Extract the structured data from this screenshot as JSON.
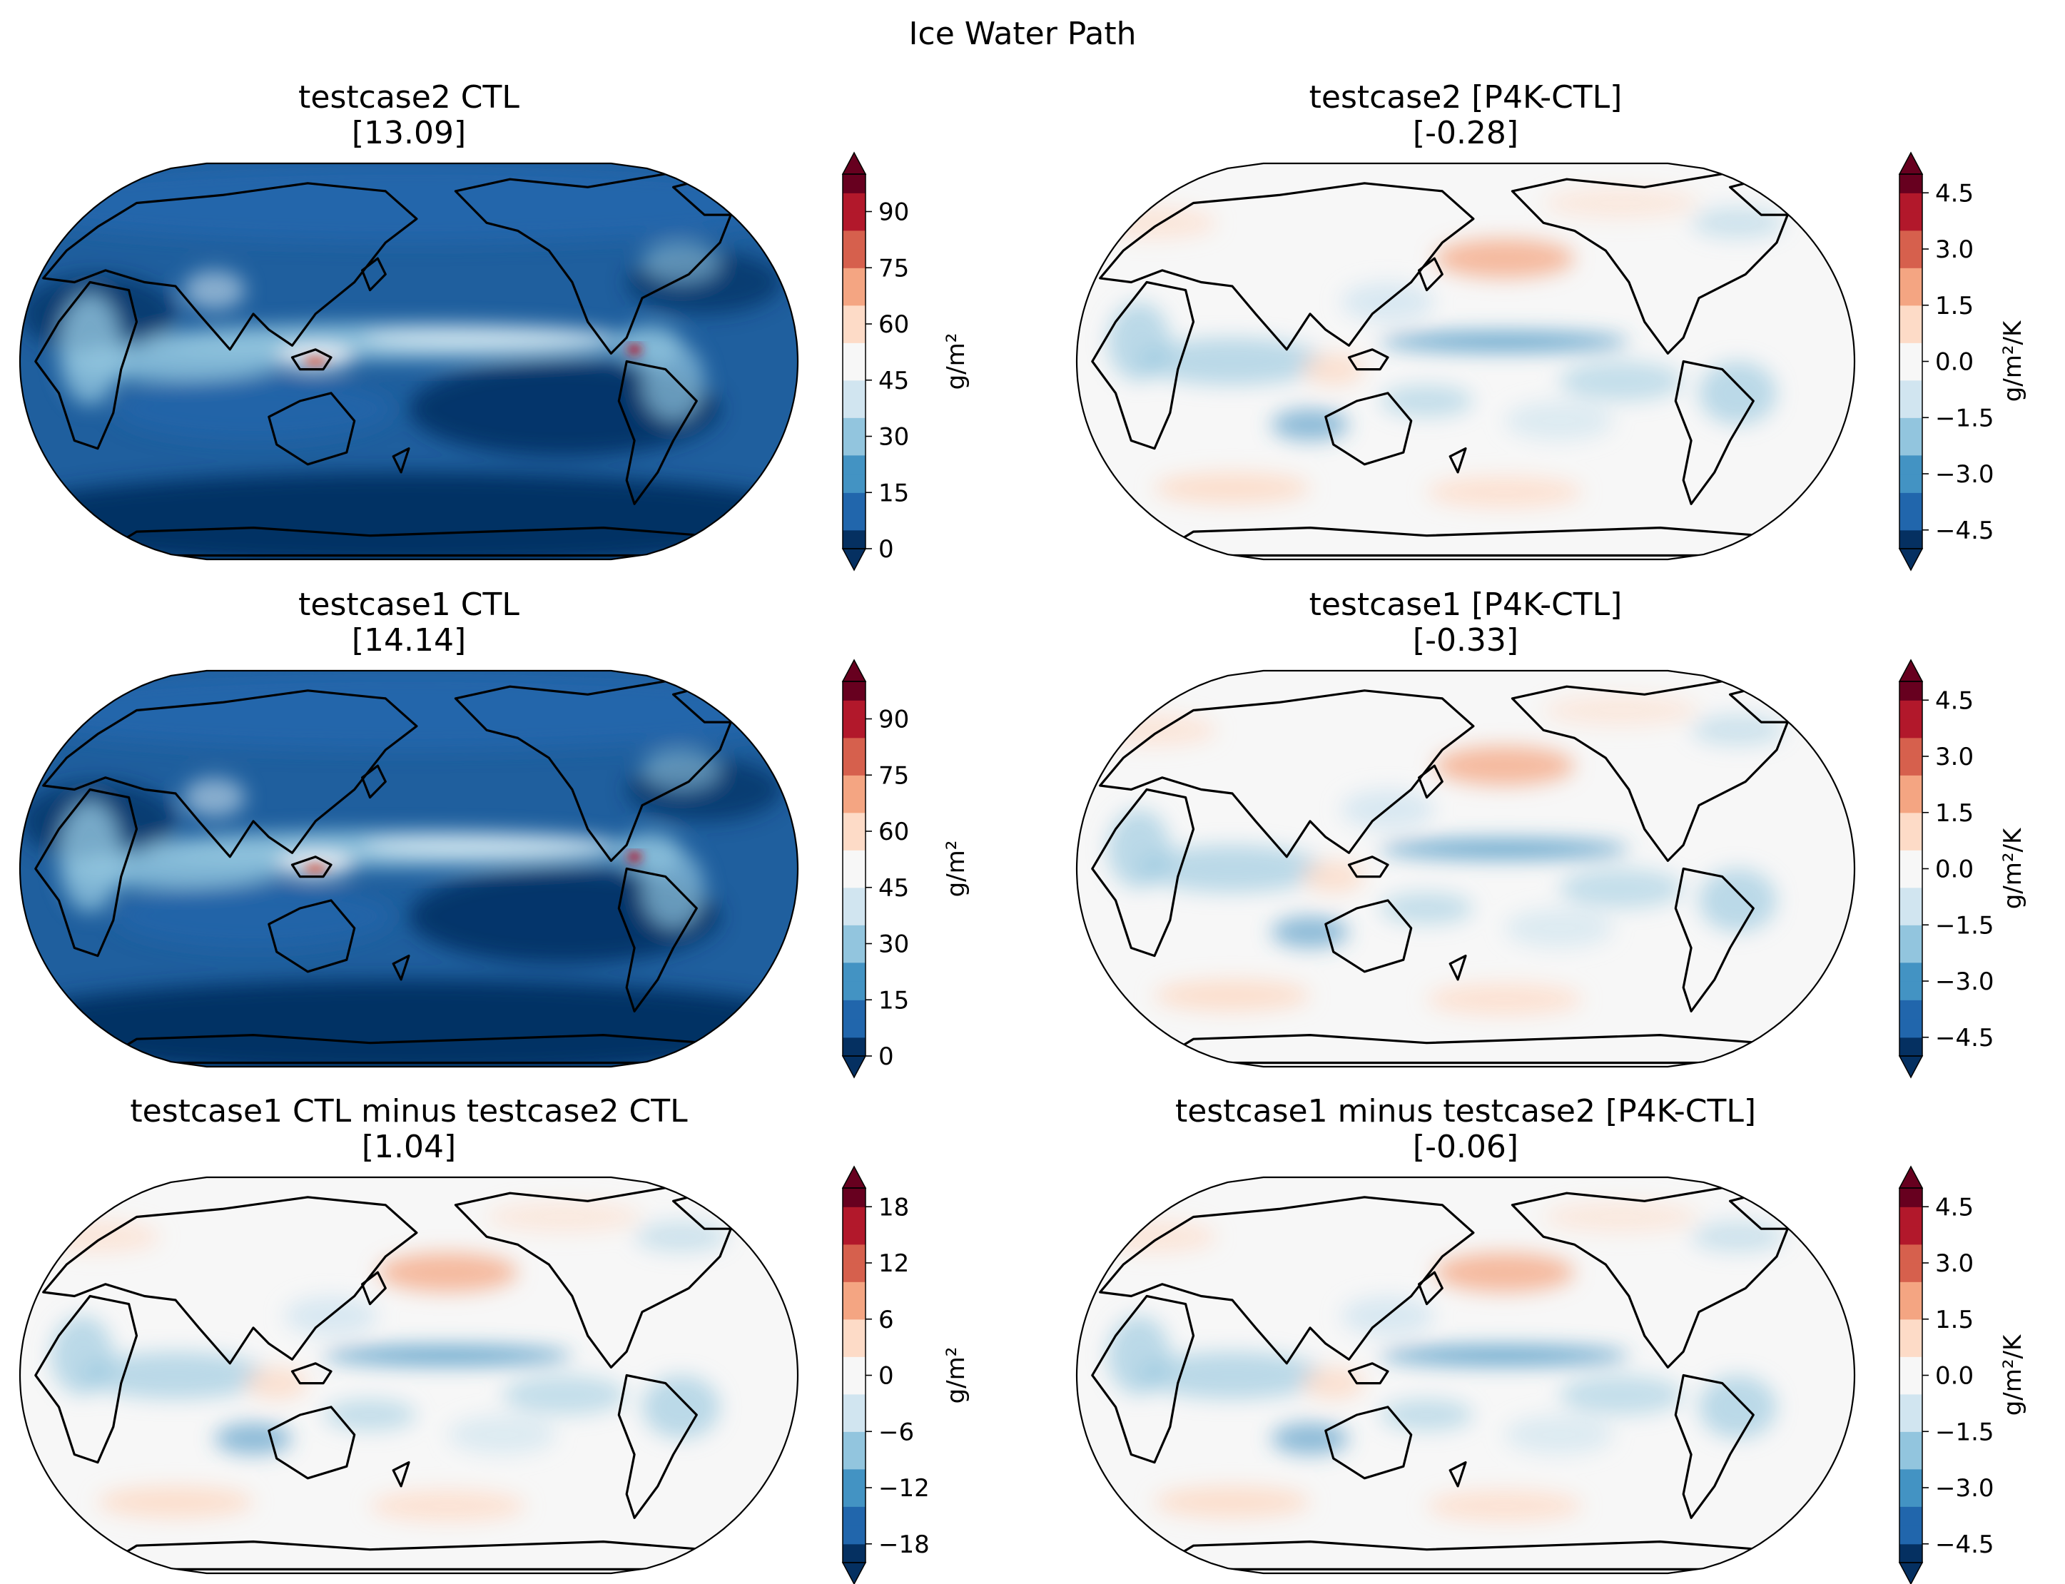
{
  "suptitle": "Ice Water Path",
  "colors": {
    "rdbu": [
      "#053061",
      "#2166ac",
      "#4393c3",
      "#92c5de",
      "#d1e5f0",
      "#f7f7f7",
      "#fddbc7",
      "#f4a582",
      "#d6604d",
      "#b2182b",
      "#67001f"
    ],
    "land_outline": "#000000"
  },
  "chart_data": [
    {
      "type": "heatmap",
      "title": "testcase2 CTL",
      "global_mean": "[13.09]",
      "field": "ctl",
      "colorbar": {
        "label": "g/m²",
        "vmin": 0,
        "vmax": 100,
        "ticks": [
          "0",
          "15",
          "30",
          "45",
          "60",
          "75",
          "90"
        ],
        "tick_values": [
          0,
          15,
          30,
          45,
          60,
          75,
          90
        ],
        "extend": "both"
      }
    },
    {
      "type": "heatmap",
      "title": "testcase2 [P4K-CTL]",
      "global_mean": "[-0.28]",
      "field": "diff",
      "colorbar": {
        "label": "g/m²/K",
        "vmin": -5,
        "vmax": 5,
        "ticks": [
          "−4.5",
          "−3.0",
          "−1.5",
          "0.0",
          "1.5",
          "3.0",
          "4.5"
        ],
        "tick_values": [
          -4.5,
          -3.0,
          -1.5,
          0.0,
          1.5,
          3.0,
          4.5
        ],
        "extend": "both"
      }
    },
    {
      "type": "heatmap",
      "title": "testcase1 CTL",
      "global_mean": "[14.14]",
      "field": "ctl",
      "colorbar": {
        "label": "g/m²",
        "vmin": 0,
        "vmax": 100,
        "ticks": [
          "0",
          "15",
          "30",
          "45",
          "60",
          "75",
          "90"
        ],
        "tick_values": [
          0,
          15,
          30,
          45,
          60,
          75,
          90
        ],
        "extend": "both"
      }
    },
    {
      "type": "heatmap",
      "title": "testcase1 [P4K-CTL]",
      "global_mean": "[-0.33]",
      "field": "diff",
      "colorbar": {
        "label": "g/m²/K",
        "vmin": -5,
        "vmax": 5,
        "ticks": [
          "−4.5",
          "−3.0",
          "−1.5",
          "0.0",
          "1.5",
          "3.0",
          "4.5"
        ],
        "tick_values": [
          -4.5,
          -3.0,
          -1.5,
          0.0,
          1.5,
          3.0,
          4.5
        ],
        "extend": "both"
      }
    },
    {
      "type": "heatmap",
      "title": "testcase1 CTL minus testcase2 CTL",
      "global_mean": "[1.04]",
      "field": "diff",
      "colorbar": {
        "label": "g/m²",
        "vmin": -20,
        "vmax": 20,
        "ticks": [
          "−18",
          "−12",
          "−6",
          "0",
          "6",
          "12",
          "18"
        ],
        "tick_values": [
          -18,
          -12,
          -6,
          0,
          6,
          12,
          18
        ],
        "extend": "both"
      }
    },
    {
      "type": "heatmap",
      "title": "testcase1 minus testcase2 [P4K-CTL]",
      "global_mean": "[-0.06]",
      "field": "diff",
      "colorbar": {
        "label": "g/m²/K",
        "vmin": -5,
        "vmax": 5,
        "ticks": [
          "−4.5",
          "−3.0",
          "−1.5",
          "0.0",
          "1.5",
          "3.0",
          "4.5"
        ],
        "tick_values": [
          -4.5,
          -3.0,
          -1.5,
          0.0,
          1.5,
          3.0,
          4.5
        ],
        "extend": "both"
      }
    }
  ]
}
